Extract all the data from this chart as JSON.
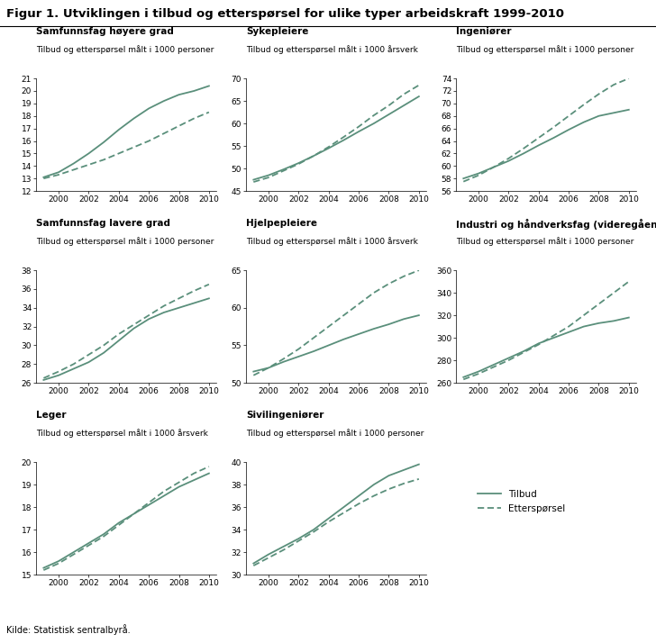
{
  "title": "Figur 1. Utviklingen i tilbud og etterspørsel for ulike typer arbeidskraft 1999-2010",
  "source": "Kilde: Statistisk sentralbyrå.",
  "years": [
    1999,
    2000,
    2001,
    2002,
    2003,
    2004,
    2005,
    2006,
    2007,
    2008,
    2009,
    2010
  ],
  "line_color": "#5a8f7b",
  "panels": [
    {
      "title": "Samfunnsfag høyere grad",
      "subtitle": "Tilbud og etterspørsel målt i 1000 personer",
      "ylim": [
        12,
        21
      ],
      "yticks": [
        12,
        13,
        14,
        15,
        16,
        17,
        18,
        19,
        20,
        21
      ],
      "tilbud": [
        13.1,
        13.5,
        14.2,
        15.0,
        15.9,
        16.9,
        17.8,
        18.6,
        19.2,
        19.7,
        20.0,
        20.4
      ],
      "etterspørsel": [
        13.0,
        13.3,
        13.7,
        14.1,
        14.5,
        15.0,
        15.5,
        16.0,
        16.6,
        17.2,
        17.8,
        18.3
      ]
    },
    {
      "title": "Sykepleiere",
      "subtitle": "Tilbud og etterspørsel målt i 1000 årsverk",
      "ylim": [
        45,
        70
      ],
      "yticks": [
        45,
        50,
        55,
        60,
        65,
        70
      ],
      "tilbud": [
        47.5,
        48.5,
        49.8,
        51.2,
        52.8,
        54.5,
        56.3,
        58.2,
        60.0,
        62.0,
        64.0,
        66.0
      ],
      "etterspørsel": [
        47.0,
        48.0,
        49.5,
        51.0,
        52.8,
        54.8,
        57.0,
        59.3,
        61.8,
        64.0,
        66.5,
        68.5
      ]
    },
    {
      "title": "Ingeniører",
      "subtitle": "Tilbud og etterspørsel målt i 1000 personer",
      "ylim": [
        56,
        74
      ],
      "yticks": [
        56,
        58,
        60,
        62,
        64,
        66,
        68,
        70,
        72,
        74
      ],
      "tilbud": [
        58.0,
        58.8,
        59.8,
        60.8,
        62.0,
        63.3,
        64.5,
        65.8,
        67.0,
        68.0,
        68.5,
        69.0
      ],
      "etterspørsel": [
        57.5,
        58.5,
        59.8,
        61.2,
        62.8,
        64.5,
        66.2,
        68.0,
        69.8,
        71.5,
        73.0,
        74.0
      ]
    },
    {
      "title": "Samfunnsfag lavere grad",
      "subtitle": "Tilbud og etterspørsel målt i 1000 personer",
      "ylim": [
        26,
        38
      ],
      "yticks": [
        26,
        28,
        30,
        32,
        34,
        36,
        38
      ],
      "tilbud": [
        26.3,
        26.8,
        27.5,
        28.2,
        29.2,
        30.5,
        31.8,
        32.8,
        33.5,
        34.0,
        34.5,
        35.0
      ],
      "etterspørsel": [
        26.5,
        27.2,
        28.0,
        29.0,
        30.0,
        31.2,
        32.2,
        33.2,
        34.2,
        35.0,
        35.8,
        36.5
      ]
    },
    {
      "title": "Hjelpepleiere",
      "subtitle": "Tilbud og etterspørsel målt i 1000 årsverk",
      "ylim": [
        50,
        65
      ],
      "yticks": [
        50,
        55,
        60,
        65
      ],
      "tilbud": [
        51.5,
        52.0,
        52.8,
        53.5,
        54.2,
        55.0,
        55.8,
        56.5,
        57.2,
        57.8,
        58.5,
        59.0
      ],
      "etterspørsel": [
        51.0,
        52.0,
        53.2,
        54.5,
        56.0,
        57.5,
        59.0,
        60.5,
        62.0,
        63.2,
        64.2,
        65.0
      ]
    },
    {
      "title": "Industri og håndverksfag (videregående skole)",
      "subtitle": "Tilbud og etterspørsel målt i 1000 personer",
      "ylim": [
        260,
        360
      ],
      "yticks": [
        260,
        280,
        300,
        320,
        340,
        360
      ],
      "tilbud": [
        265,
        270,
        276,
        282,
        288,
        295,
        300,
        305,
        310,
        313,
        315,
        318
      ],
      "etterspørsel": [
        263,
        268,
        274,
        280,
        287,
        294,
        302,
        310,
        320,
        330,
        340,
        350
      ]
    },
    {
      "title": "Leger",
      "subtitle": "Tilbud og etterspørsel målt i 1000 årsverk",
      "ylim": [
        15,
        20
      ],
      "yticks": [
        15,
        16,
        17,
        18,
        19,
        20
      ],
      "tilbud": [
        15.3,
        15.6,
        16.0,
        16.4,
        16.8,
        17.3,
        17.7,
        18.1,
        18.5,
        18.9,
        19.2,
        19.5
      ],
      "etterspørsel": [
        15.2,
        15.5,
        15.9,
        16.3,
        16.7,
        17.2,
        17.7,
        18.2,
        18.7,
        19.1,
        19.5,
        19.8
      ]
    },
    {
      "title": "Sivilingeniører",
      "subtitle": "Tilbud og etterspørsel målt i 1000 personer",
      "ylim": [
        30,
        40
      ],
      "yticks": [
        30,
        32,
        34,
        36,
        38,
        40
      ],
      "tilbud": [
        31.0,
        31.8,
        32.5,
        33.2,
        34.0,
        35.0,
        36.0,
        37.0,
        38.0,
        38.8,
        39.3,
        39.8
      ],
      "etterspørsel": [
        30.8,
        31.5,
        32.2,
        33.0,
        33.8,
        34.7,
        35.5,
        36.3,
        37.0,
        37.6,
        38.1,
        38.5
      ]
    }
  ],
  "legend_labels": [
    "Tilbud",
    "Etterspørsel"
  ]
}
